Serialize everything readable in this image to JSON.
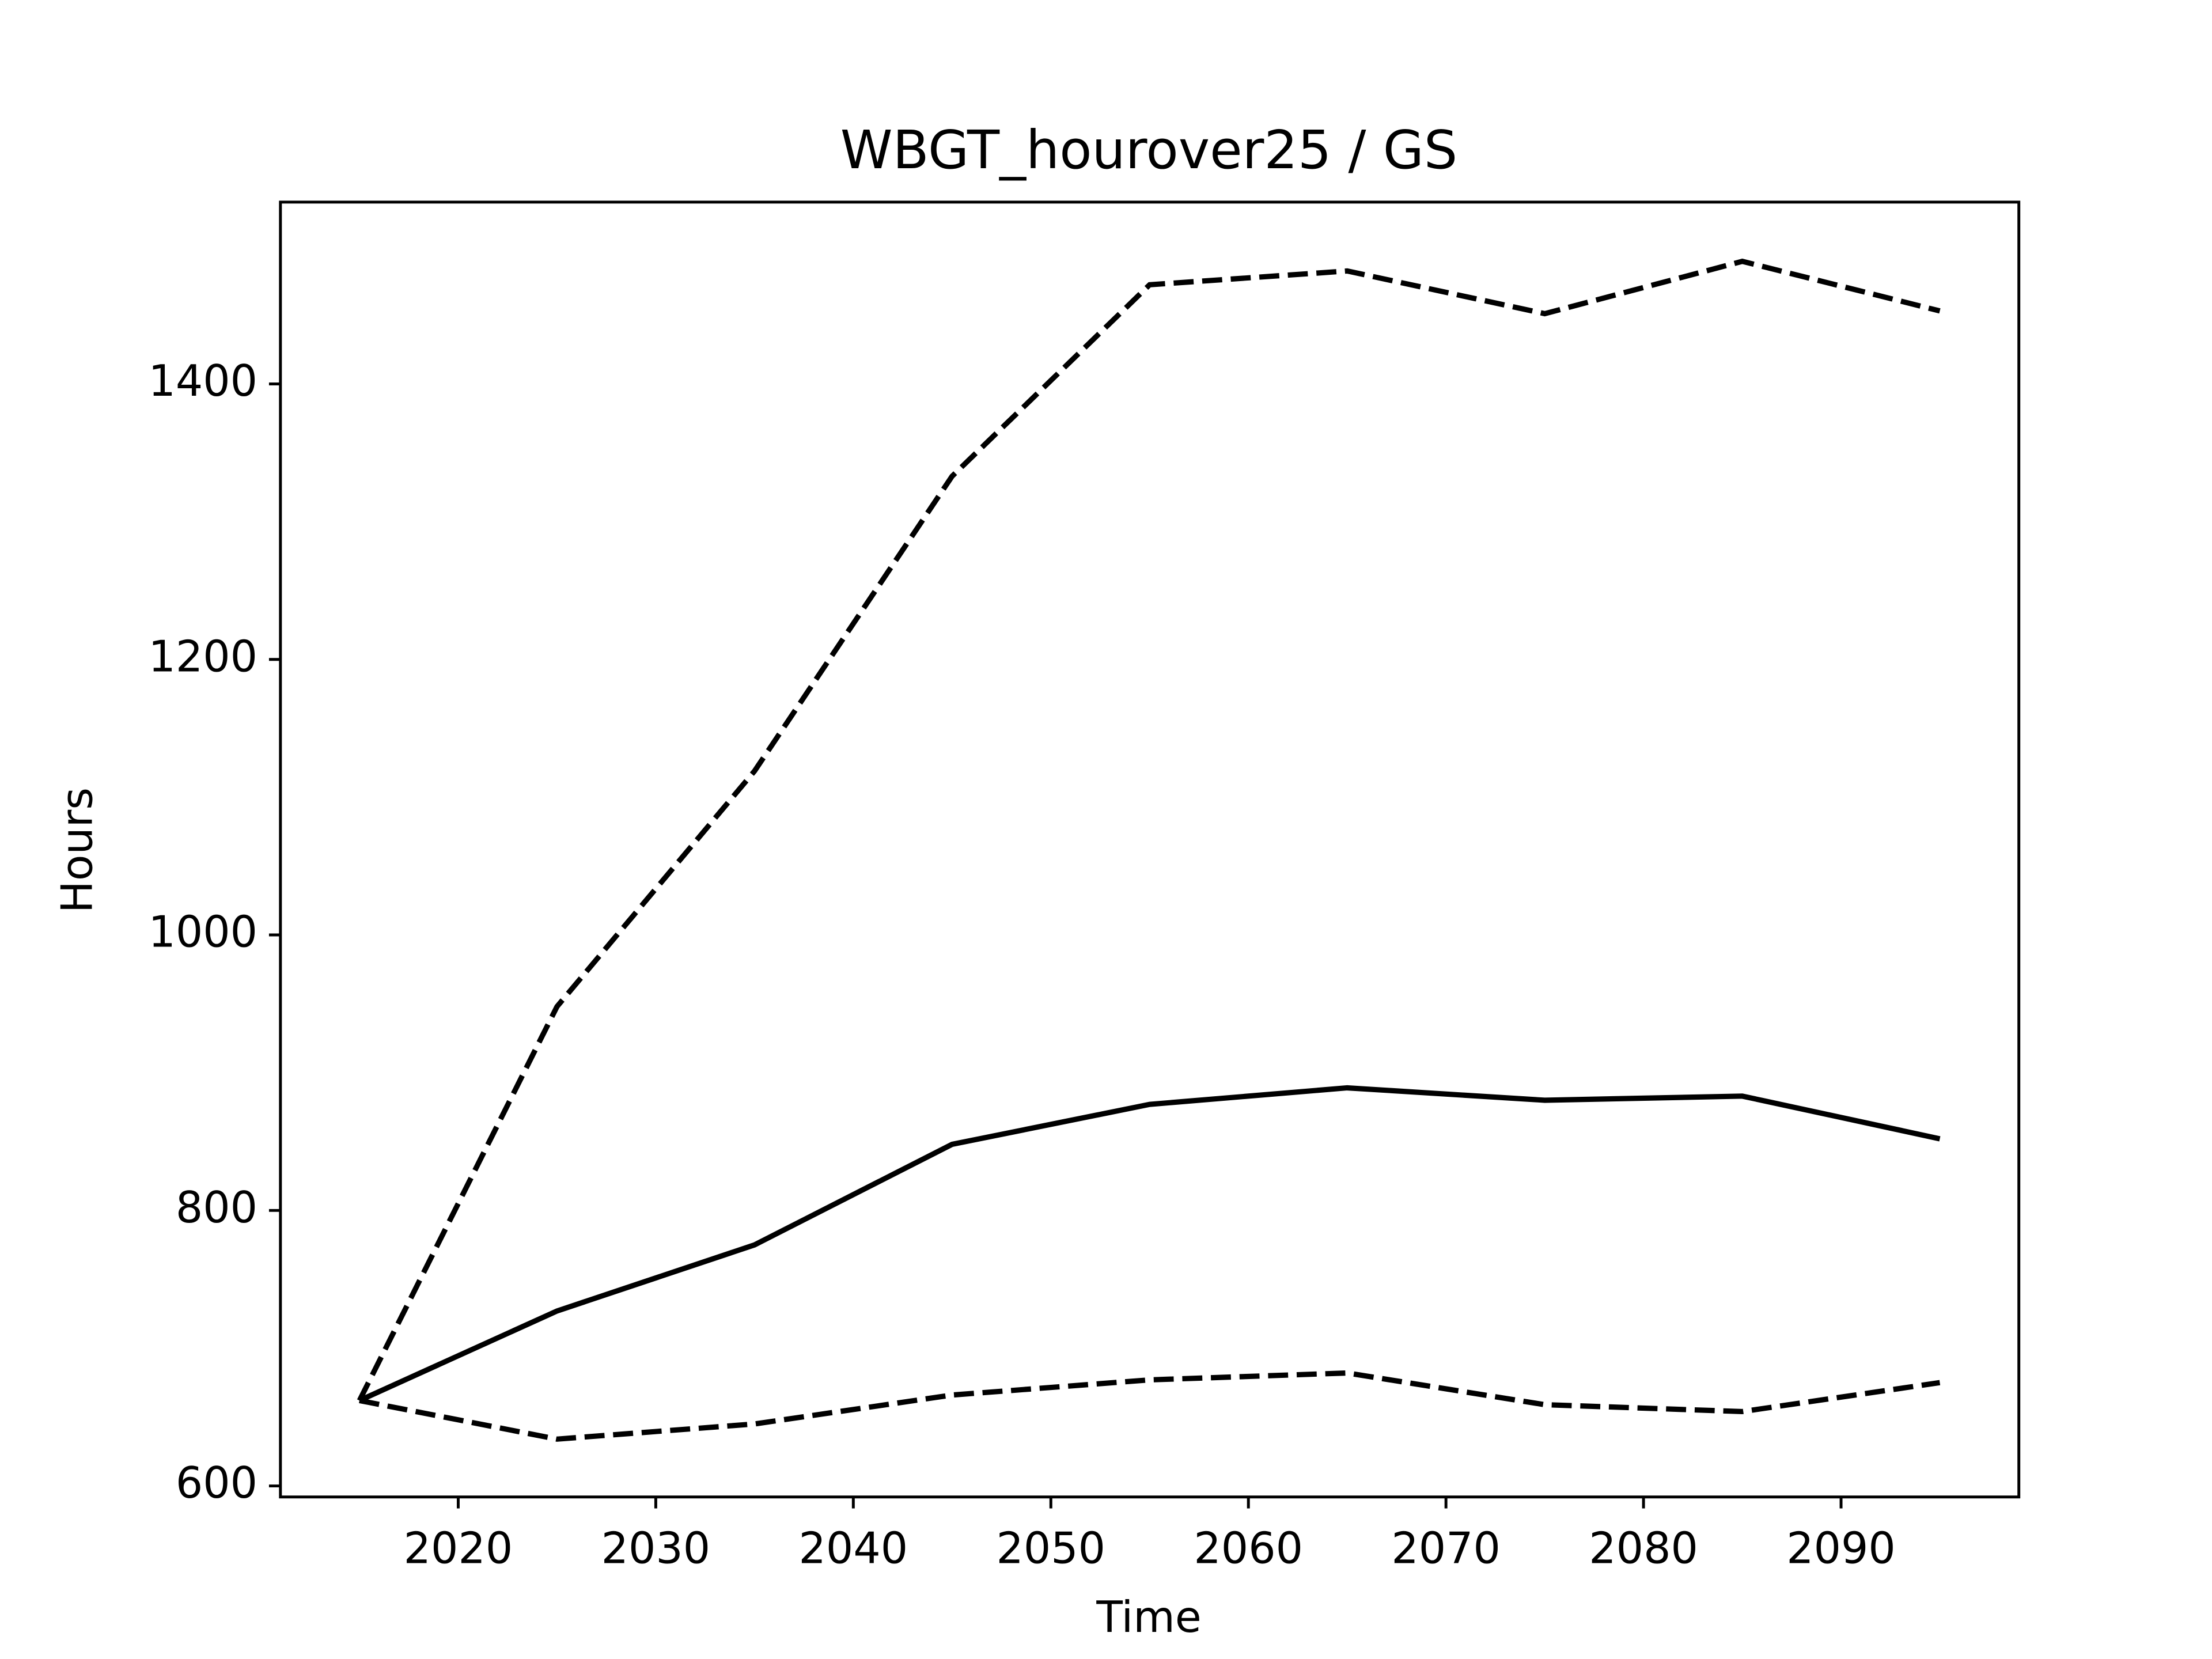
{
  "chart_data": {
    "type": "line",
    "title": "WBGT_hourover25 / GS",
    "x_label": "Time",
    "y_label": "Hours",
    "x": [
      2015,
      2025,
      2035,
      2045,
      2055,
      2065,
      2075,
      2085,
      2095
    ],
    "series": [
      {
        "color": "#000000",
        "dashed": false,
        "values": [
          662,
          727,
          775,
          848,
          877,
          889,
          880,
          883,
          852
        ]
      },
      {
        "color": "#000000",
        "dashed": true,
        "values": [
          662,
          948,
          1119,
          1333,
          1472,
          1482,
          1451,
          1489,
          1453
        ]
      },
      {
        "color": "#000000",
        "dashed": true,
        "values": [
          662,
          634,
          645,
          666,
          677,
          682,
          659,
          654,
          675
        ]
      }
    ],
    "xlim": [
      2011,
      2099
    ],
    "ylim": [
      592,
      1532
    ],
    "xticks": [
      2020,
      2030,
      2040,
      2050,
      2060,
      2070,
      2080,
      2090
    ],
    "yticks": [
      600,
      800,
      1000,
      1200,
      1400
    ],
    "grid": false
  }
}
